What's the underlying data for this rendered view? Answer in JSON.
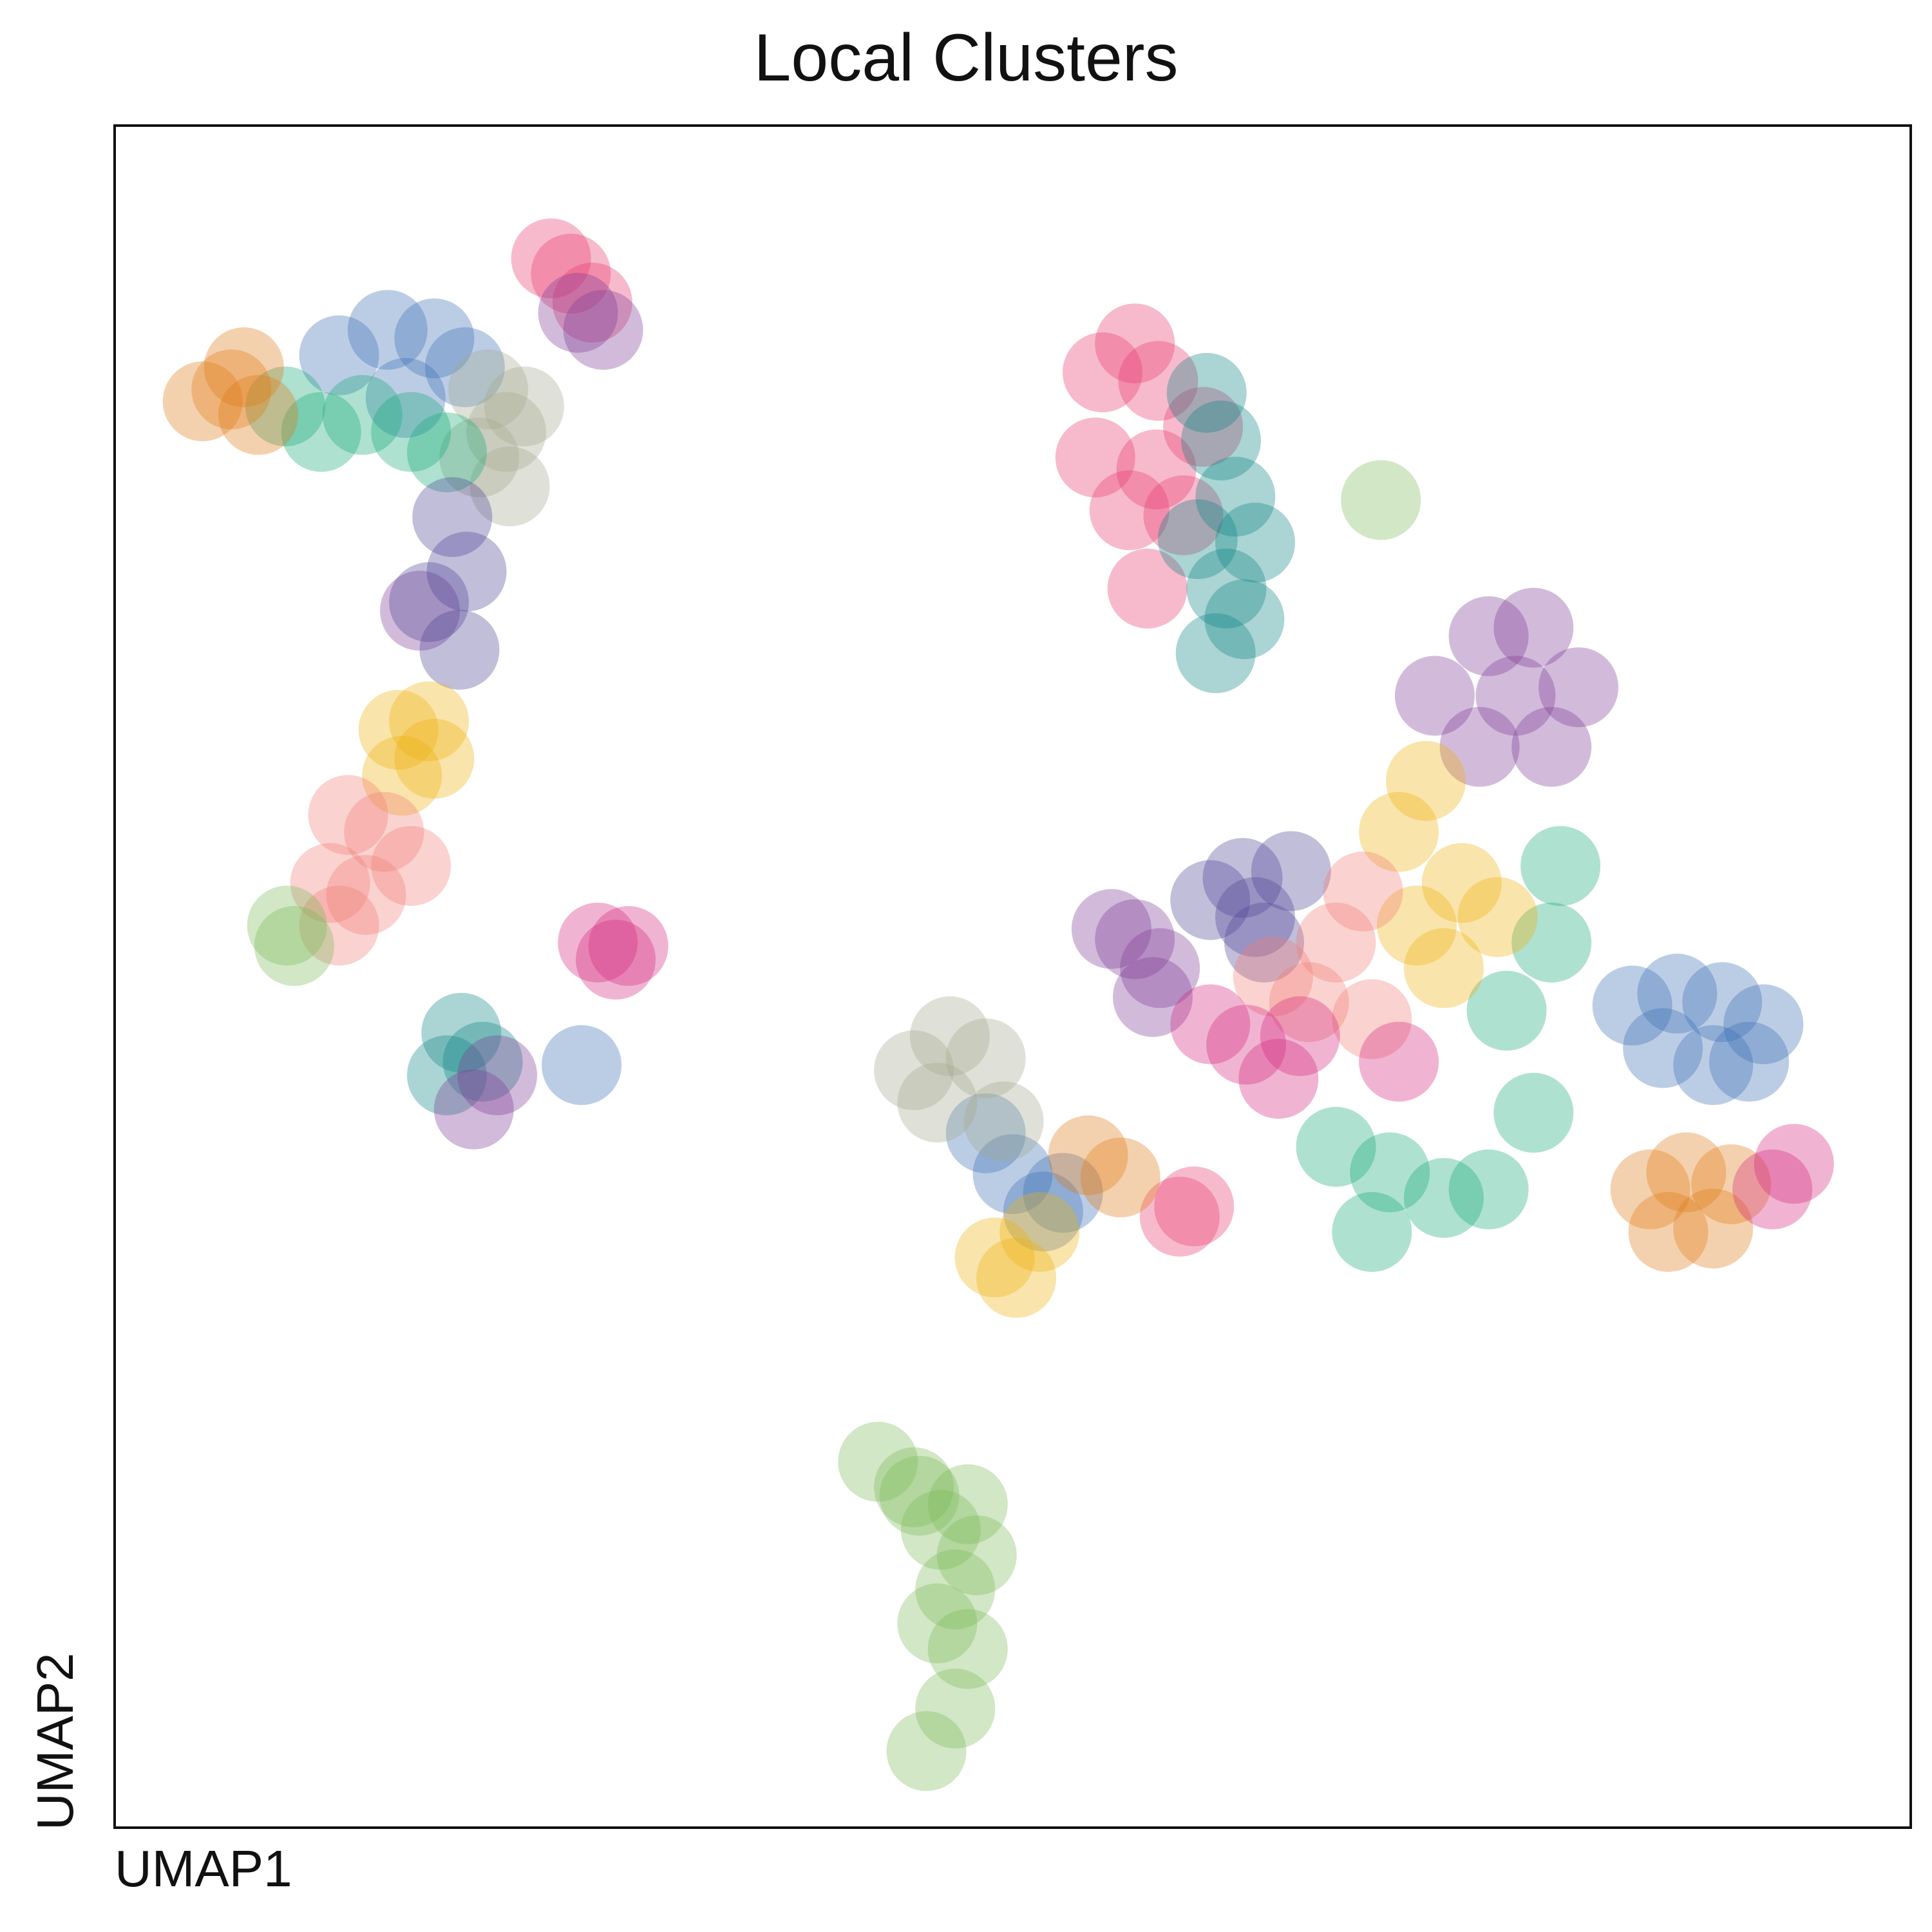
{
  "chart_data": {
    "type": "scatter",
    "title": "Local Clusters",
    "xlabel": "UMAP1",
    "ylabel": "UMAP2",
    "xlim": [
      0,
      100
    ],
    "ylim": [
      0,
      100
    ],
    "axis_ticks": false,
    "grid": false,
    "legend": "none",
    "point_opacity": 0.35,
    "series": [
      {
        "color": "#E7396F",
        "points": [
          [
            24.3,
            92.2
          ],
          [
            25.4,
            91.3
          ],
          [
            26.6,
            89.6
          ],
          [
            55.0,
            85.5
          ],
          [
            56.8,
            87.2
          ],
          [
            58.1,
            85.0
          ],
          [
            54.6,
            80.5
          ],
          [
            56.5,
            77.4
          ],
          [
            58.0,
            79.8
          ],
          [
            60.6,
            82.3
          ],
          [
            57.5,
            72.8
          ],
          [
            59.5,
            77.1
          ],
          [
            59.3,
            35.9
          ],
          [
            60.1,
            36.5
          ]
        ]
      },
      {
        "color": "#0E8585",
        "points": [
          [
            60.8,
            84.3
          ],
          [
            61.6,
            81.5
          ],
          [
            62.4,
            78.2
          ],
          [
            60.3,
            75.7
          ],
          [
            61.9,
            72.8
          ],
          [
            63.5,
            75.5
          ],
          [
            61.3,
            69.0
          ],
          [
            62.9,
            71.0
          ],
          [
            19.3,
            46.7
          ],
          [
            20.5,
            45.0
          ],
          [
            18.5,
            44.2
          ]
        ]
      },
      {
        "color": "#3D6FB4",
        "points": [
          [
            12.5,
            86.5
          ],
          [
            15.2,
            88.0
          ],
          [
            17.8,
            87.5
          ],
          [
            19.5,
            85.8
          ],
          [
            16.2,
            84.0
          ],
          [
            51.7,
            36.2
          ],
          [
            50.0,
            38.4
          ],
          [
            52.8,
            37.3
          ],
          [
            48.5,
            40.8
          ],
          [
            84.5,
            48.3
          ],
          [
            87.0,
            49.0
          ],
          [
            89.5,
            48.5
          ],
          [
            91.8,
            47.2
          ],
          [
            86.2,
            45.8
          ],
          [
            89.0,
            44.8
          ],
          [
            91.0,
            45.0
          ],
          [
            26.0,
            44.8
          ]
        ]
      },
      {
        "color": "#A3A98F",
        "points": [
          [
            20.8,
            84.5
          ],
          [
            21.8,
            82.0
          ],
          [
            20.3,
            80.5
          ],
          [
            22.8,
            83.5
          ],
          [
            22.0,
            78.8
          ],
          [
            44.5,
            44.5
          ],
          [
            46.5,
            46.5
          ],
          [
            48.5,
            45.2
          ],
          [
            45.8,
            42.6
          ],
          [
            49.5,
            41.5
          ]
        ]
      },
      {
        "color": "#18A878",
        "points": [
          [
            9.5,
            83.5
          ],
          [
            11.5,
            82.0
          ],
          [
            13.8,
            83.0
          ],
          [
            16.5,
            82.0
          ],
          [
            18.5,
            80.8
          ],
          [
            68.0,
            40.0
          ],
          [
            71.0,
            38.5
          ],
          [
            74.0,
            37.0
          ],
          [
            76.5,
            37.5
          ],
          [
            79.0,
            42.0
          ],
          [
            77.5,
            48.0
          ],
          [
            80.0,
            52.0
          ],
          [
            80.5,
            56.5
          ],
          [
            70.0,
            35.0
          ]
        ]
      },
      {
        "color": "#E07A16",
        "points": [
          [
            4.9,
            83.8
          ],
          [
            6.5,
            84.5
          ],
          [
            8.0,
            83.0
          ],
          [
            7.2,
            85.8
          ],
          [
            85.5,
            37.5
          ],
          [
            87.5,
            38.5
          ],
          [
            90.0,
            37.8
          ],
          [
            86.5,
            35.0
          ],
          [
            89.0,
            35.2
          ],
          [
            56.0,
            38.2
          ],
          [
            54.2,
            39.5
          ]
        ]
      },
      {
        "color": "#7E3C94",
        "points": [
          [
            25.8,
            89.0
          ],
          [
            27.2,
            88.0
          ],
          [
            17.0,
            71.5
          ],
          [
            20.0,
            42.2
          ],
          [
            21.3,
            44.2
          ],
          [
            56.8,
            52.2
          ],
          [
            58.2,
            50.5
          ],
          [
            57.8,
            48.8
          ],
          [
            55.5,
            52.8
          ],
          [
            76.5,
            70.0
          ],
          [
            79.0,
            70.5
          ],
          [
            81.5,
            67.0
          ],
          [
            78.0,
            66.5
          ],
          [
            76.0,
            63.5
          ],
          [
            80.0,
            63.5
          ],
          [
            73.5,
            66.5
          ]
        ]
      },
      {
        "color": "#4E4495",
        "points": [
          [
            18.8,
            77.0
          ],
          [
            19.6,
            73.8
          ],
          [
            17.5,
            72.0
          ],
          [
            19.2,
            69.2
          ],
          [
            61.0,
            54.5
          ],
          [
            63.5,
            53.5
          ],
          [
            65.5,
            56.2
          ],
          [
            62.8,
            55.8
          ],
          [
            64.0,
            52.0
          ]
        ]
      },
      {
        "color": "#EDB20F",
        "points": [
          [
            15.8,
            64.5
          ],
          [
            17.5,
            65.0
          ],
          [
            16.0,
            61.8
          ],
          [
            17.8,
            62.8
          ],
          [
            49.0,
            33.5
          ],
          [
            51.5,
            35.0
          ],
          [
            50.2,
            32.3
          ],
          [
            75.0,
            55.5
          ],
          [
            72.5,
            53.0
          ],
          [
            77.0,
            53.5
          ],
          [
            74.0,
            50.5
          ],
          [
            71.5,
            58.5
          ],
          [
            73.0,
            61.5
          ]
        ]
      },
      {
        "color": "#F07F75",
        "points": [
          [
            13.0,
            59.5
          ],
          [
            12.0,
            55.5
          ],
          [
            14.0,
            54.8
          ],
          [
            15.0,
            58.5
          ],
          [
            16.5,
            56.5
          ],
          [
            12.5,
            53.0
          ],
          [
            68.0,
            52.0
          ],
          [
            66.5,
            48.5
          ],
          [
            70.0,
            47.5
          ],
          [
            69.5,
            55.0
          ],
          [
            64.5,
            50.0
          ]
        ]
      },
      {
        "color": "#D4287E",
        "points": [
          [
            26.9,
            52.0
          ],
          [
            27.9,
            51.0
          ],
          [
            28.6,
            51.8
          ],
          [
            63.0,
            46.0
          ],
          [
            64.8,
            44.0
          ],
          [
            61.0,
            47.2
          ],
          [
            66.0,
            46.5
          ],
          [
            71.5,
            45.0
          ],
          [
            93.5,
            39.0
          ],
          [
            92.3,
            37.5
          ]
        ]
      },
      {
        "color": "#7CBB58",
        "points": [
          [
            9.6,
            53.0
          ],
          [
            10.0,
            51.8
          ],
          [
            70.5,
            78.0
          ],
          [
            42.5,
            21.5
          ],
          [
            44.5,
            20.0
          ],
          [
            46.0,
            17.5
          ],
          [
            46.8,
            14.0
          ],
          [
            47.5,
            10.5
          ],
          [
            46.8,
            7.0
          ],
          [
            45.2,
            4.5
          ],
          [
            44.8,
            19.5
          ],
          [
            45.8,
            12.0
          ],
          [
            47.5,
            19.0
          ],
          [
            48.0,
            16.0
          ]
        ]
      }
    ]
  }
}
